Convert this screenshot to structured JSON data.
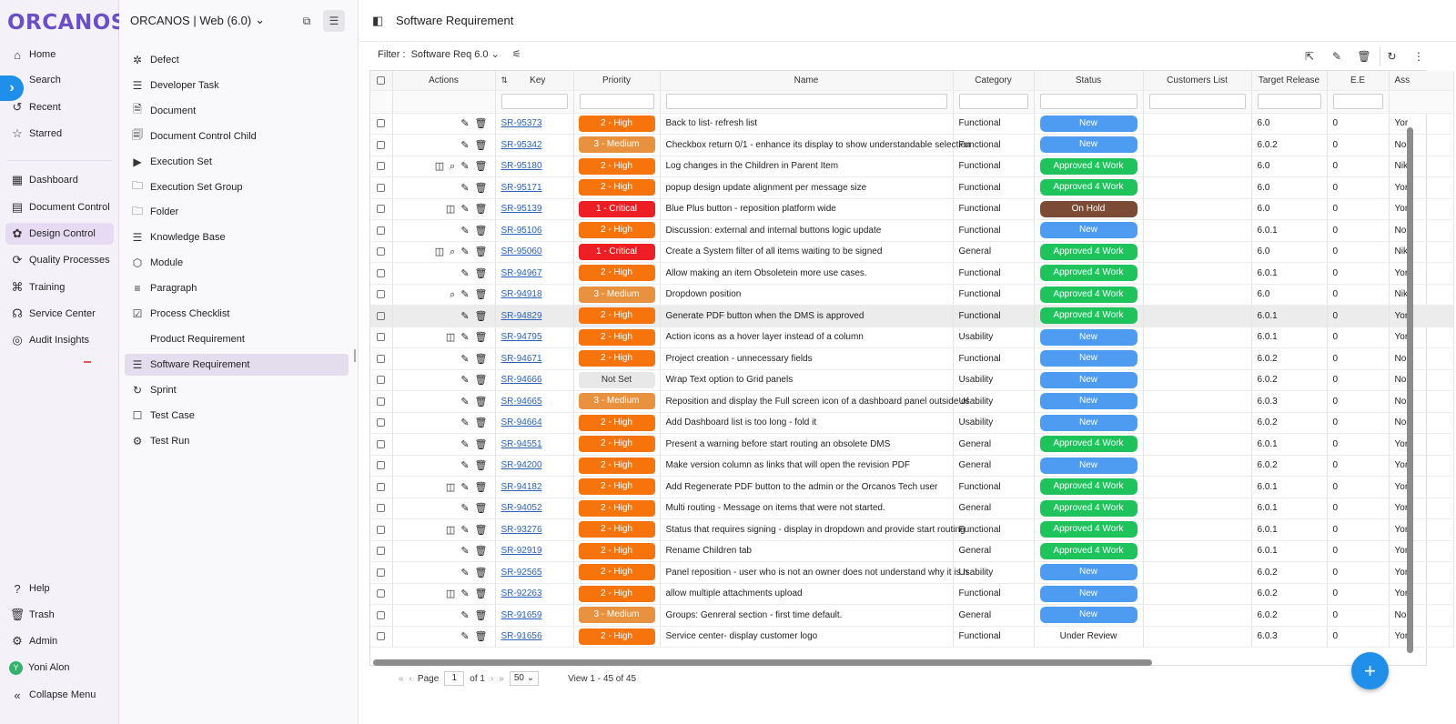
{
  "rail": {
    "logo_a": "ORCAN",
    "logo_b": "OS",
    "top_items": [
      {
        "label": "Home",
        "icon": "home-icon"
      },
      {
        "label": "Search",
        "icon": "search-icon"
      },
      {
        "label": "Recent",
        "icon": "history-icon"
      },
      {
        "label": "Starred",
        "icon": "star-icon"
      }
    ],
    "mid_items": [
      {
        "label": "Dashboard",
        "icon": "dashboard-icon"
      },
      {
        "label": "Document Control",
        "icon": "document-control-icon"
      },
      {
        "label": "Design Control",
        "icon": "design-control-icon",
        "active": true
      },
      {
        "label": "Quality Processes",
        "icon": "quality-icon"
      },
      {
        "label": "Training",
        "icon": "training-icon"
      },
      {
        "label": "Service Center",
        "icon": "headset-icon"
      },
      {
        "label": "Audit Insights",
        "icon": "audit-icon"
      }
    ],
    "bottom_items": [
      {
        "label": "Help",
        "icon": "help-icon"
      },
      {
        "label": "Trash",
        "icon": "trash-icon"
      },
      {
        "label": "Admin",
        "icon": "gear-icon"
      },
      {
        "label": "Yoni Alon",
        "icon": "avatar-icon",
        "initial": "Y"
      },
      {
        "label": "Collapse Menu",
        "icon": "collapse-icon"
      }
    ]
  },
  "panel2": {
    "project": "ORCANOS | Web (6.0)",
    "items": [
      {
        "label": "Defect",
        "icon": "bug-icon"
      },
      {
        "label": "Developer Task",
        "icon": "list-icon"
      },
      {
        "label": "Document",
        "icon": "document-icon"
      },
      {
        "label": "Document Control Child",
        "icon": "document-child-icon"
      },
      {
        "label": "Execution Set",
        "icon": "play-icon"
      },
      {
        "label": "Execution Set Group",
        "icon": "folder-icon"
      },
      {
        "label": "Folder",
        "icon": "folder-icon"
      },
      {
        "label": "Knowledge Base",
        "icon": "list-icon"
      },
      {
        "label": "Module",
        "icon": "cube-icon"
      },
      {
        "label": "Paragraph",
        "icon": "paragraph-icon"
      },
      {
        "label": "Process Checklist",
        "icon": "checklist-icon"
      },
      {
        "label": "Product Requirement",
        "icon": ""
      },
      {
        "label": "Software Requirement",
        "icon": "list-icon",
        "active": true
      },
      {
        "label": "Sprint",
        "icon": "sprint-icon"
      },
      {
        "label": "Test Case",
        "icon": "test-case-icon"
      },
      {
        "label": "Test Run",
        "icon": "test-run-icon"
      }
    ]
  },
  "main": {
    "title": "Software Requirement",
    "filter_label": "Filter :",
    "filter_value": "Software Req 6.0"
  },
  "columns": [
    "Actions",
    "Key",
    "Priority",
    "Name",
    "Category",
    "Status",
    "Customers List",
    "Target Release",
    "E.E",
    "Ass"
  ],
  "priority_colors": {
    "2 - High": "#f7740c",
    "3 - Medium": "#e8913f",
    "1 - Critical": "#ee1f24",
    "Not Set": "#e8e8e8"
  },
  "status_colors": {
    "New": "#4e9bf2",
    "Approved 4 Work": "#1ec35c",
    "On Hold": "#7b4b35",
    "Under Review": "transparent"
  },
  "rows": [
    {
      "key": "SR-95373",
      "priority": "2 - High",
      "name": "Back to list- refresh list",
      "category": "Functional",
      "status": "New",
      "release": "6.0",
      "ee": "0",
      "ass": "Yor",
      "icons": ""
    },
    {
      "key": "SR-95342",
      "priority": "3 - Medium",
      "name": "Checkbox return 0/1 - enhance its display to show understandable selection",
      "category": "Functional",
      "status": "New",
      "release": "6.0.2",
      "ee": "0",
      "ass": "Nor",
      "icons": ""
    },
    {
      "key": "SR-95180",
      "priority": "2 - High",
      "name": "Log changes in the Children in Parent Item",
      "category": "Functional",
      "status": "Approved 4 Work",
      "release": "6.0",
      "ee": "0",
      "ass": "Nik",
      "icons": "split,zoom"
    },
    {
      "key": "SR-95171",
      "priority": "2 - High",
      "name": "popup design update alignment per message size",
      "category": "Functional",
      "status": "Approved 4 Work",
      "release": "6.0",
      "ee": "0",
      "ass": "Yor",
      "icons": ""
    },
    {
      "key": "SR-95139",
      "priority": "1 - Critical",
      "name": "Blue Plus button - reposition platform wide",
      "category": "Functional",
      "status": "On Hold",
      "release": "6.0",
      "ee": "0",
      "ass": "Yor",
      "icons": "split"
    },
    {
      "key": "SR-95106",
      "priority": "2 - High",
      "name": "Discussion: external and internal buttons logic update",
      "category": "Functional",
      "status": "New",
      "release": "6.0.1",
      "ee": "0",
      "ass": "Nor",
      "icons": ""
    },
    {
      "key": "SR-95060",
      "priority": "1 - Critical",
      "name": "Create a System filter of all items waiting to be signed",
      "category": "General",
      "status": "Approved 4 Work",
      "release": "6.0",
      "ee": "0",
      "ass": "Nik",
      "icons": "split,zoom"
    },
    {
      "key": "SR-94967",
      "priority": "2 - High",
      "name": "Allow making an item Obsoletein more use cases.",
      "category": "Functional",
      "status": "Approved 4 Work",
      "release": "6.0.1",
      "ee": "0",
      "ass": "Yor",
      "icons": ""
    },
    {
      "key": "SR-94918",
      "priority": "3 - Medium",
      "name": "Dropdown position",
      "category": "Functional",
      "status": "Approved 4 Work",
      "release": "6.0",
      "ee": "0",
      "ass": "Nik",
      "icons": "zoom"
    },
    {
      "key": "SR-94829",
      "priority": "2 - High",
      "name": "Generate PDF button when the DMS is approved",
      "category": "Functional",
      "status": "Approved 4 Work",
      "release": "6.0.1",
      "ee": "0",
      "ass": "Yor",
      "icons": "",
      "hl": true
    },
    {
      "key": "SR-94795",
      "priority": "2 - High",
      "name": "Action icons as a hover layer instead of a column",
      "category": "Usability",
      "status": "New",
      "release": "6.0.1",
      "ee": "0",
      "ass": "Yor",
      "icons": "split"
    },
    {
      "key": "SR-94671",
      "priority": "2 - High",
      "name": "Project creation - unnecessary fields",
      "category": "Functional",
      "status": "New",
      "release": "6.0.2",
      "ee": "0",
      "ass": "Nor",
      "icons": ""
    },
    {
      "key": "SR-94666",
      "priority": "Not Set",
      "name": "Wrap Text option to Grid panels",
      "category": "Usability",
      "status": "New",
      "release": "6.0.2",
      "ee": "0",
      "ass": "Nor",
      "icons": ""
    },
    {
      "key": "SR-94665",
      "priority": "3 - Medium",
      "name": "Reposition and display the Full screen icon of a dashboard panel outside of",
      "category": "Usability",
      "status": "New",
      "release": "6.0.3",
      "ee": "0",
      "ass": "Nor",
      "icons": ""
    },
    {
      "key": "SR-94664",
      "priority": "2 - High",
      "name": "Add Dashboard list is too long - fold it",
      "category": "Usability",
      "status": "New",
      "release": "6.0.2",
      "ee": "0",
      "ass": "Nor",
      "icons": ""
    },
    {
      "key": "SR-94551",
      "priority": "2 - High",
      "name": "Present a warning before start routing an obsolete DMS",
      "category": "General",
      "status": "Approved 4 Work",
      "release": "6.0.1",
      "ee": "0",
      "ass": "Yor",
      "icons": ""
    },
    {
      "key": "SR-94200",
      "priority": "2 - High",
      "name": "Make version column as links that will open the revision PDF",
      "category": "General",
      "status": "New",
      "release": "6.0.2",
      "ee": "0",
      "ass": "Yor",
      "icons": ""
    },
    {
      "key": "SR-94182",
      "priority": "2 - High",
      "name": "Add Regenerate PDF button to the admin or the Orcanos Tech user",
      "category": "Functional",
      "status": "Approved 4 Work",
      "release": "6.0.1",
      "ee": "0",
      "ass": "Yor",
      "icons": "split"
    },
    {
      "key": "SR-94052",
      "priority": "2 - High",
      "name": "Multi routing - Message on items that were not started.",
      "category": "General",
      "status": "Approved 4 Work",
      "release": "6.0.1",
      "ee": "0",
      "ass": "Yor",
      "icons": ""
    },
    {
      "key": "SR-93276",
      "priority": "2 - High",
      "name": "Status that requires signing - display in dropdown and provide start routing",
      "category": "Functional",
      "status": "Approved 4 Work",
      "release": "6.0.1",
      "ee": "0",
      "ass": "Yor",
      "icons": "split"
    },
    {
      "key": "SR-92919",
      "priority": "2 - High",
      "name": "Rename Children tab",
      "category": "General",
      "status": "Approved 4 Work",
      "release": "6.0.1",
      "ee": "0",
      "ass": "Yor",
      "icons": ""
    },
    {
      "key": "SR-92565",
      "priority": "2 - High",
      "name": "Panel reposition - user who is not an owner does not understand why it is n",
      "category": "Usability",
      "status": "New",
      "release": "6.0.2",
      "ee": "0",
      "ass": "Yor",
      "icons": ""
    },
    {
      "key": "SR-92263",
      "priority": "2 - High",
      "name": "allow multiple attachments upload",
      "category": "Functional",
      "status": "New",
      "release": "6.0.2",
      "ee": "0",
      "ass": "Yor",
      "icons": "split"
    },
    {
      "key": "SR-91659",
      "priority": "3 - Medium",
      "name": "Groups: Genreral section - first time default.",
      "category": "General",
      "status": "New",
      "release": "6.0.2",
      "ee": "0",
      "ass": "Nor",
      "icons": ""
    },
    {
      "key": "SR-91656",
      "priority": "2 - High",
      "name": "Service center- display customer logo",
      "category": "Functional",
      "status": "Under Review",
      "release": "6.0.3",
      "ee": "0",
      "ass": "Yor",
      "icons": ""
    }
  ],
  "pager": {
    "page_label": "Page",
    "page": "1",
    "of_label": "of 1",
    "page_size": "50",
    "view": "View 1 - 45 of 45"
  },
  "fab_label": "+"
}
